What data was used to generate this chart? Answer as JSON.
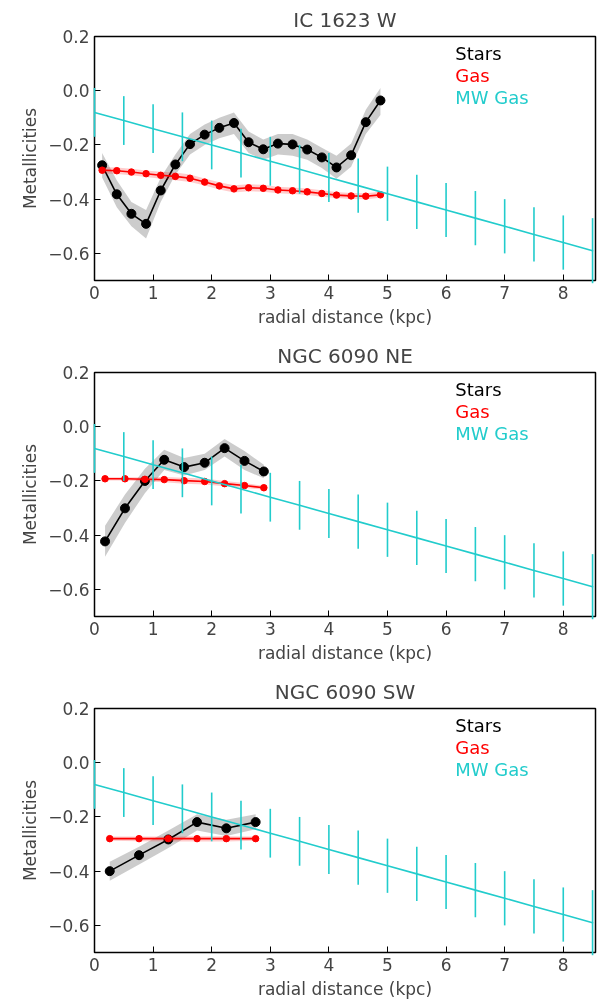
{
  "chart_data": [
    {
      "type": "line",
      "title": "IC 1623 W",
      "xlabel": "radial distance (kpc)",
      "ylabel": "Metallicities",
      "xlim": [
        0,
        8.55
      ],
      "ylim": [
        -0.7,
        0.2
      ],
      "xticks": [
        0,
        1,
        2,
        3,
        4,
        5,
        6,
        7,
        8
      ],
      "yticks": [
        {
          "value": 0.2,
          "label": "0.2"
        },
        {
          "value": 0.0,
          "label": "0.0"
        },
        {
          "value": -0.2,
          "label": "−0.2"
        },
        {
          "value": -0.4,
          "label": "−0.4"
        },
        {
          "value": -0.6,
          "label": "−0.6"
        }
      ],
      "legend": "top right",
      "series": [
        {
          "name": "Stars",
          "color": "#000000",
          "marker": "circle",
          "x": [
            0.13,
            0.38,
            0.63,
            0.88,
            1.13,
            1.38,
            1.63,
            1.88,
            2.13,
            2.38,
            2.63,
            2.88,
            3.13,
            3.38,
            3.63,
            3.88,
            4.13,
            4.38,
            4.63,
            4.88
          ],
          "values": [
            -0.275,
            -0.382,
            -0.454,
            -0.491,
            -0.368,
            -0.272,
            -0.197,
            -0.162,
            -0.137,
            -0.119,
            -0.19,
            -0.216,
            -0.195,
            -0.198,
            -0.217,
            -0.246,
            -0.283,
            -0.238,
            -0.116,
            -0.036
          ],
          "lower": [
            -0.32,
            -0.43,
            -0.5,
            -0.545,
            -0.41,
            -0.31,
            -0.235,
            -0.2,
            -0.175,
            -0.16,
            -0.23,
            -0.255,
            -0.235,
            -0.24,
            -0.255,
            -0.285,
            -0.325,
            -0.28,
            -0.16,
            -0.09
          ],
          "upper": [
            -0.23,
            -0.33,
            -0.41,
            -0.44,
            -0.32,
            -0.235,
            -0.16,
            -0.125,
            -0.1,
            -0.08,
            -0.15,
            -0.18,
            -0.16,
            -0.16,
            -0.18,
            -0.21,
            -0.24,
            -0.195,
            -0.07,
            0.01
          ]
        },
        {
          "name": "Gas",
          "color": "#ff0000",
          "marker": "circle",
          "x": [
            0.13,
            0.38,
            0.63,
            0.88,
            1.13,
            1.38,
            1.63,
            1.88,
            2.13,
            2.38,
            2.63,
            2.88,
            3.13,
            3.38,
            3.63,
            3.88,
            4.13,
            4.38,
            4.63,
            4.88
          ],
          "values": [
            -0.293,
            -0.295,
            -0.3,
            -0.306,
            -0.312,
            -0.316,
            -0.323,
            -0.337,
            -0.351,
            -0.362,
            -0.358,
            -0.36,
            -0.366,
            -0.369,
            -0.373,
            -0.379,
            -0.385,
            -0.388,
            -0.389,
            -0.384
          ],
          "lower": [
            -0.305,
            -0.307,
            -0.312,
            -0.318,
            -0.325,
            -0.33,
            -0.337,
            -0.35,
            -0.364,
            -0.375,
            -0.371,
            -0.373,
            -0.378,
            -0.381,
            -0.385,
            -0.391,
            -0.396,
            -0.399,
            -0.4,
            -0.395
          ],
          "upper": [
            -0.281,
            -0.283,
            -0.288,
            -0.294,
            -0.299,
            -0.302,
            -0.309,
            -0.324,
            -0.338,
            -0.349,
            -0.345,
            -0.347,
            -0.354,
            -0.357,
            -0.361,
            -0.367,
            -0.374,
            -0.377,
            -0.378,
            -0.373
          ]
        },
        {
          "name": "MW Gas",
          "color": "#22cccc",
          "marker": "none",
          "x": [
            0,
            0.5,
            1,
            1.5,
            2,
            2.5,
            3,
            3.5,
            4,
            4.5,
            5,
            5.5,
            6,
            6.5,
            7,
            7.5,
            8,
            8.5
          ],
          "values": [
            -0.08,
            -0.11,
            -0.14,
            -0.17,
            -0.2,
            -0.23,
            -0.26,
            -0.29,
            -0.32,
            -0.35,
            -0.38,
            -0.41,
            -0.44,
            -0.47,
            -0.5,
            -0.53,
            -0.56,
            -0.59
          ],
          "errors": [
            0.09,
            0.09,
            0.09,
            0.09,
            0.09,
            0.09,
            0.09,
            0.09,
            0.09,
            0.1,
            0.1,
            0.1,
            0.1,
            0.1,
            0.1,
            0.1,
            0.1,
            0.12
          ]
        }
      ]
    },
    {
      "type": "line",
      "title": "NGC 6090 NE",
      "xlabel": "radial distance (kpc)",
      "ylabel": "Metallicities",
      "xlim": [
        0,
        8.55
      ],
      "ylim": [
        -0.7,
        0.2
      ],
      "xticks": [
        0,
        1,
        2,
        3,
        4,
        5,
        6,
        7,
        8
      ],
      "yticks": [
        {
          "value": 0.2,
          "label": "0.2"
        },
        {
          "value": 0.0,
          "label": "0.0"
        },
        {
          "value": -0.2,
          "label": "−0.2"
        },
        {
          "value": -0.4,
          "label": "−0.4"
        },
        {
          "value": -0.6,
          "label": "−0.6"
        }
      ],
      "legend": "top right",
      "series": [
        {
          "name": "Stars",
          "color": "#000000",
          "marker": "circle",
          "x": [
            0.18,
            0.52,
            0.86,
            1.19,
            1.53,
            1.88,
            2.22,
            2.56,
            2.89
          ],
          "values": [
            -0.423,
            -0.301,
            -0.2,
            -0.122,
            -0.149,
            -0.133,
            -0.079,
            -0.126,
            -0.165
          ],
          "lower": [
            -0.48,
            -0.355,
            -0.245,
            -0.16,
            -0.18,
            -0.16,
            -0.11,
            -0.16,
            -0.19
          ],
          "upper": [
            -0.365,
            -0.25,
            -0.155,
            -0.085,
            -0.115,
            -0.1,
            -0.045,
            -0.09,
            -0.14
          ]
        },
        {
          "name": "Gas",
          "color": "#ff0000",
          "marker": "circle",
          "x": [
            0.18,
            0.52,
            0.86,
            1.19,
            1.53,
            1.88,
            2.22,
            2.56,
            2.89
          ],
          "values": [
            -0.192,
            -0.192,
            -0.194,
            -0.195,
            -0.199,
            -0.202,
            -0.21,
            -0.217,
            -0.225
          ],
          "lower": [
            -0.198,
            -0.198,
            -0.202,
            -0.205,
            -0.21,
            -0.213,
            -0.22,
            -0.226,
            -0.232
          ],
          "upper": [
            -0.186,
            -0.186,
            -0.186,
            -0.185,
            -0.188,
            -0.191,
            -0.2,
            -0.208,
            -0.218
          ]
        },
        {
          "name": "MW Gas",
          "color": "#22cccc",
          "marker": "none",
          "x": [
            0,
            0.5,
            1,
            1.5,
            2,
            2.5,
            3,
            3.5,
            4,
            4.5,
            5,
            5.5,
            6,
            6.5,
            7,
            7.5,
            8,
            8.5
          ],
          "values": [
            -0.08,
            -0.11,
            -0.14,
            -0.17,
            -0.2,
            -0.23,
            -0.26,
            -0.29,
            -0.32,
            -0.35,
            -0.38,
            -0.41,
            -0.44,
            -0.47,
            -0.5,
            -0.53,
            -0.56,
            -0.59
          ],
          "errors": [
            0.09,
            0.09,
            0.09,
            0.09,
            0.09,
            0.09,
            0.09,
            0.09,
            0.09,
            0.1,
            0.1,
            0.1,
            0.1,
            0.1,
            0.1,
            0.1,
            0.1,
            0.12
          ]
        }
      ]
    },
    {
      "type": "line",
      "title": "NGC 6090 SW",
      "xlabel": "radial distance (kpc)",
      "ylabel": "Metallicities",
      "xlim": [
        0,
        8.55
      ],
      "ylim": [
        -0.7,
        0.2
      ],
      "xticks": [
        0,
        1,
        2,
        3,
        4,
        5,
        6,
        7,
        8
      ],
      "yticks": [
        {
          "value": 0.2,
          "label": "0.2"
        },
        {
          "value": 0.0,
          "label": "0.0"
        },
        {
          "value": -0.2,
          "label": "−0.2"
        },
        {
          "value": -0.4,
          "label": "−0.4"
        },
        {
          "value": -0.6,
          "label": "−0.6"
        }
      ],
      "legend": "top right",
      "series": [
        {
          "name": "Stars",
          "color": "#000000",
          "marker": "circle",
          "x": [
            0.26,
            0.76,
            1.26,
            1.75,
            2.25,
            2.75
          ],
          "values": [
            -0.4,
            -0.341,
            -0.283,
            -0.219,
            -0.242,
            -0.219
          ],
          "lower": [
            -0.435,
            -0.375,
            -0.315,
            -0.25,
            -0.27,
            -0.245
          ],
          "upper": [
            -0.365,
            -0.31,
            -0.25,
            -0.19,
            -0.21,
            -0.19
          ]
        },
        {
          "name": "Gas",
          "color": "#ff0000",
          "marker": "circle",
          "x": [
            0.26,
            0.76,
            1.26,
            1.75,
            2.25,
            2.75
          ],
          "values": [
            -0.28,
            -0.28,
            -0.28,
            -0.28,
            -0.28,
            -0.28
          ],
          "lower": [
            -0.288,
            -0.29,
            -0.291,
            -0.291,
            -0.291,
            -0.288
          ],
          "upper": [
            -0.272,
            -0.272,
            -0.272,
            -0.271,
            -0.271,
            -0.272
          ]
        },
        {
          "name": "MW Gas",
          "color": "#22cccc",
          "marker": "none",
          "x": [
            0,
            0.5,
            1,
            1.5,
            2,
            2.5,
            3,
            3.5,
            4,
            4.5,
            5,
            5.5,
            6,
            6.5,
            7,
            7.5,
            8,
            8.5
          ],
          "values": [
            -0.08,
            -0.11,
            -0.14,
            -0.17,
            -0.2,
            -0.23,
            -0.26,
            -0.29,
            -0.32,
            -0.35,
            -0.38,
            -0.41,
            -0.44,
            -0.47,
            -0.5,
            -0.53,
            -0.56,
            -0.59
          ],
          "errors": [
            0.09,
            0.09,
            0.09,
            0.09,
            0.09,
            0.09,
            0.09,
            0.09,
            0.09,
            0.1,
            0.1,
            0.1,
            0.1,
            0.1,
            0.1,
            0.1,
            0.1,
            0.12
          ]
        }
      ]
    }
  ]
}
